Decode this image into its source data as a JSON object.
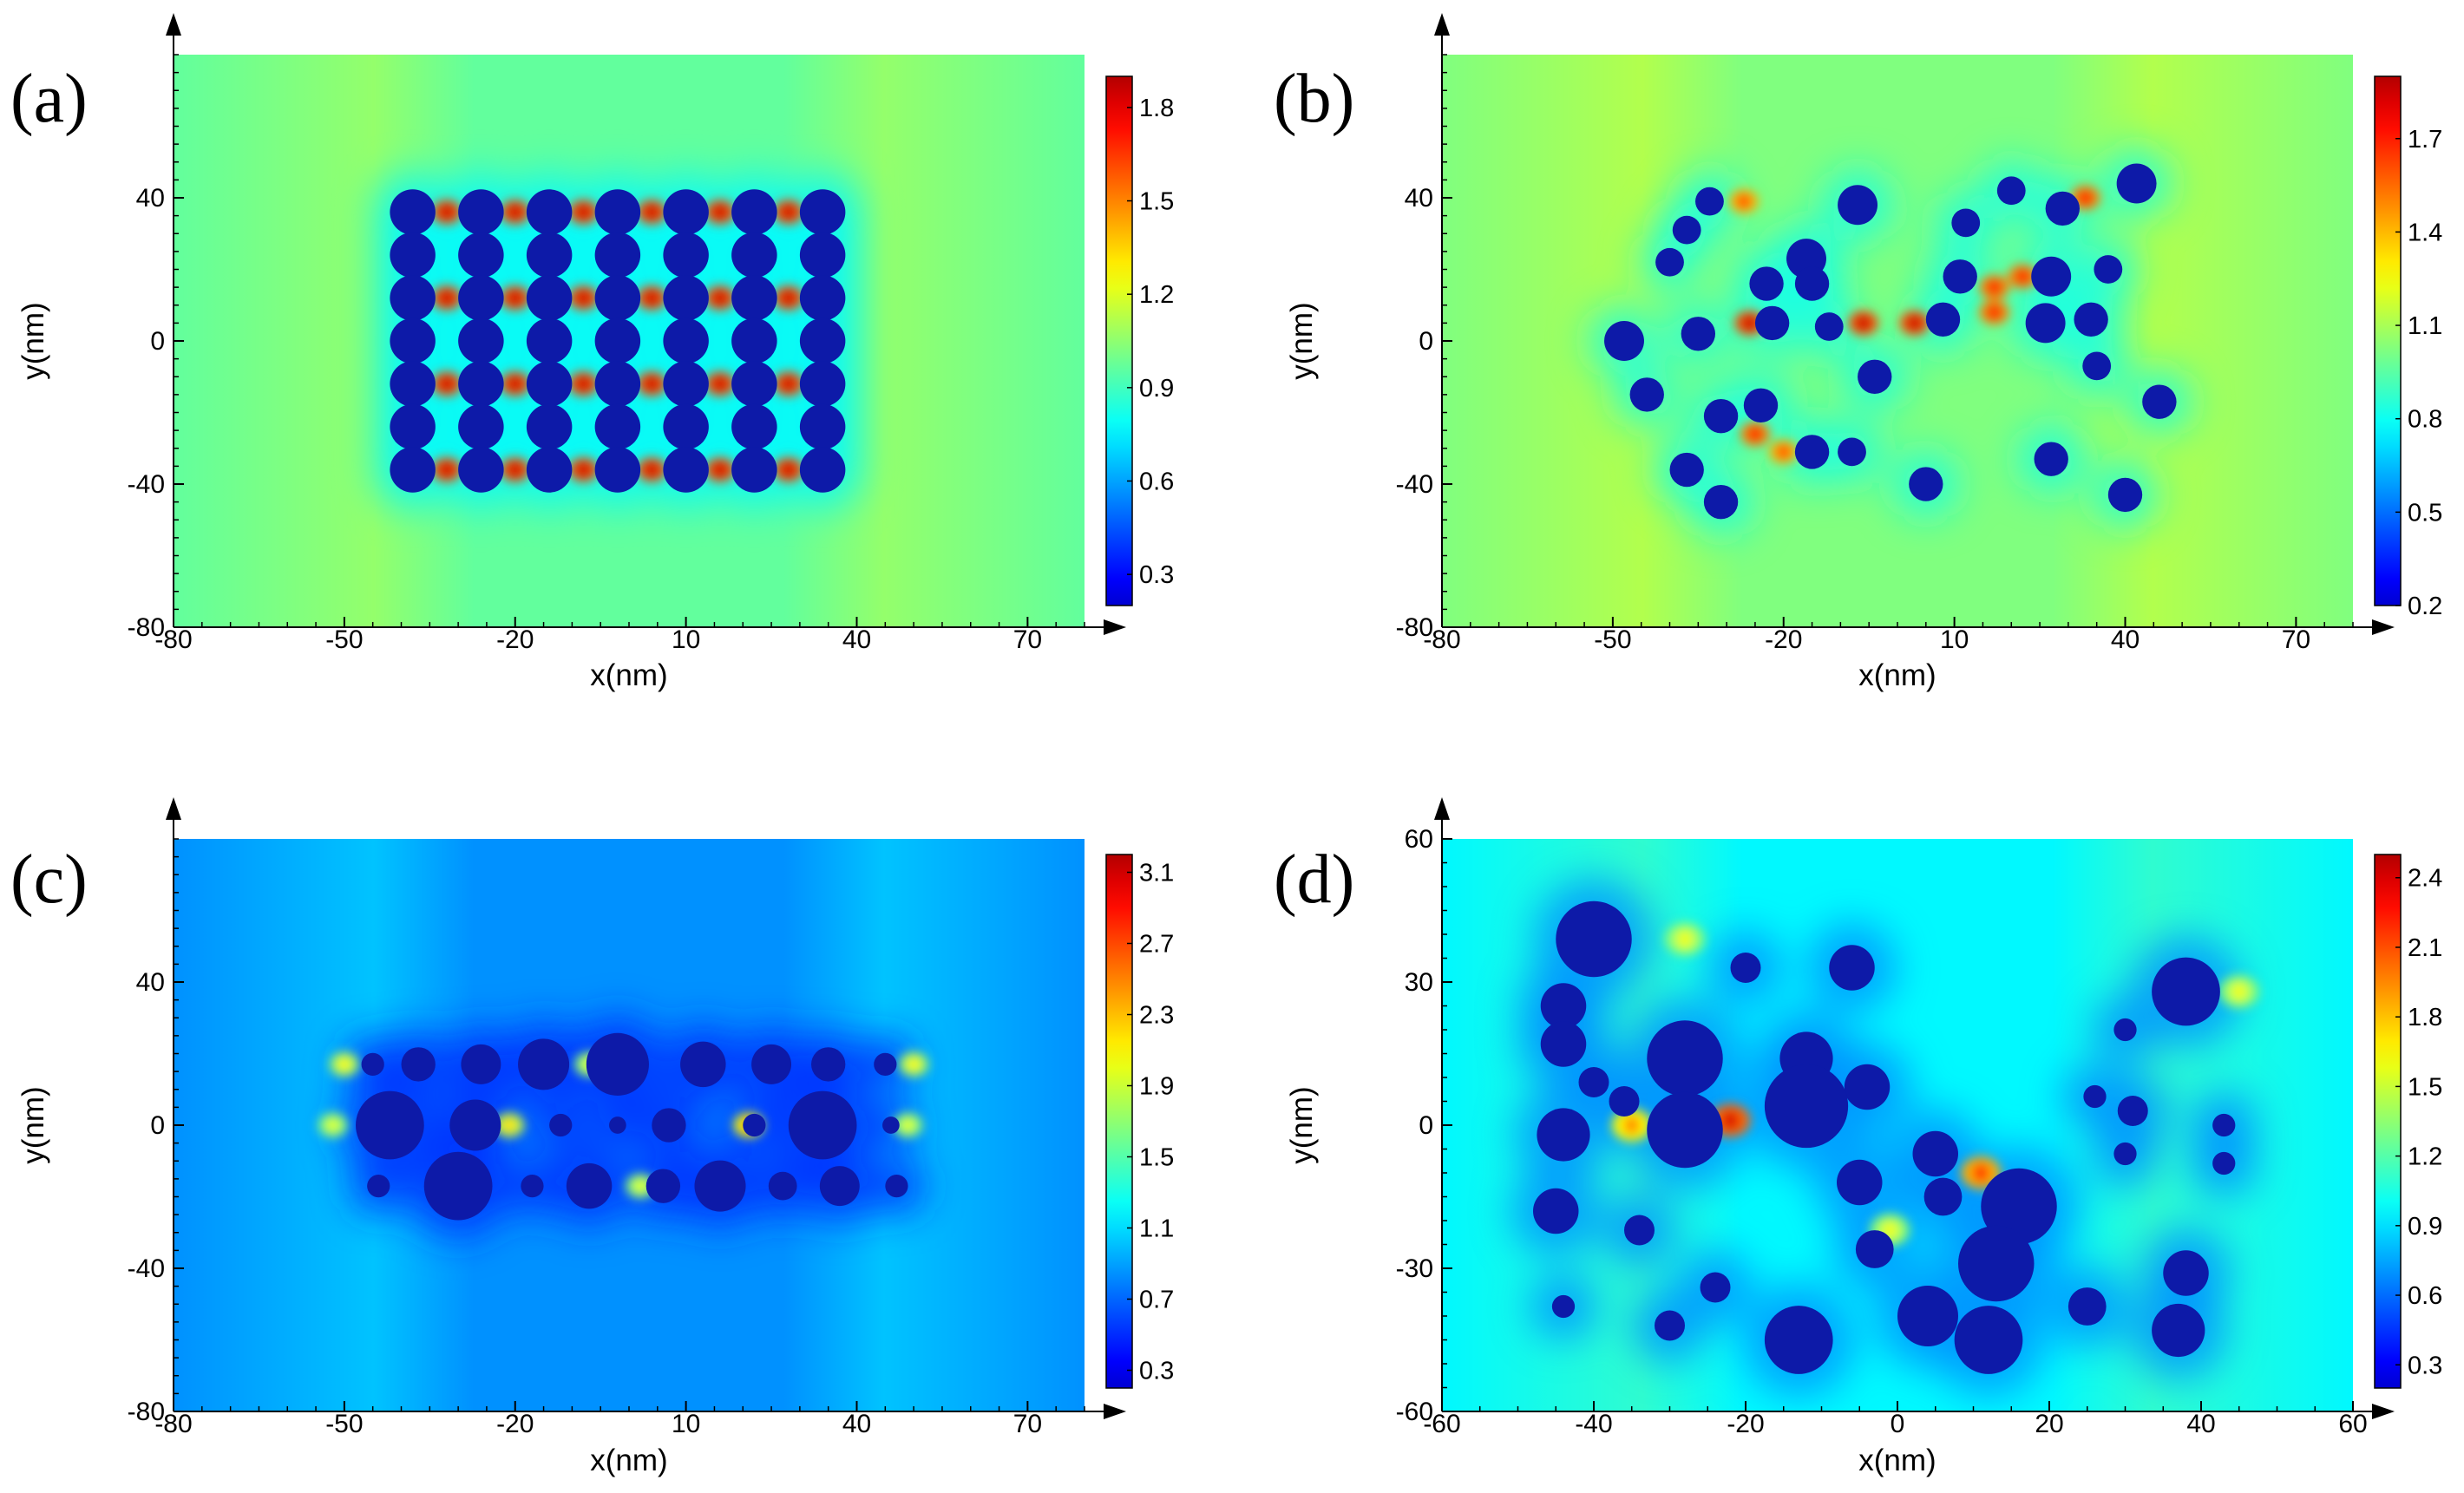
{
  "figure": {
    "kind": "field-enhancement maps of nanoparticle arrays"
  },
  "chart_data": [
    {
      "panel": "(a)",
      "type": "heatmap",
      "title": "",
      "xlabel": "x(nm)",
      "ylabel": "y(nm)",
      "xlim": [
        -80,
        80
      ],
      "ylim": [
        -80,
        80
      ],
      "xticks": [
        "-80",
        "-50",
        "-20",
        "10",
        "40",
        "70"
      ],
      "yticks": [
        "-80",
        "-40",
        "0",
        "40"
      ],
      "colorbar": {
        "min": 0.2,
        "max": 1.9,
        "ticks": [
          "0.3",
          "0.6",
          "0.9",
          "1.2",
          "1.5",
          "1.8"
        ]
      },
      "background_level": 1.0,
      "particles": [
        {
          "x": -38,
          "y": 36,
          "r": 4
        },
        {
          "x": -26,
          "y": 36,
          "r": 4
        },
        {
          "x": -14,
          "y": 36,
          "r": 4
        },
        {
          "x": -2,
          "y": 36,
          "r": 4
        },
        {
          "x": 10,
          "y": 36,
          "r": 4
        },
        {
          "x": 22,
          "y": 36,
          "r": 4
        },
        {
          "x": 34,
          "y": 36,
          "r": 4
        },
        {
          "x": -38,
          "y": 24,
          "r": 4
        },
        {
          "x": -26,
          "y": 24,
          "r": 4
        },
        {
          "x": -14,
          "y": 24,
          "r": 4
        },
        {
          "x": -2,
          "y": 24,
          "r": 4
        },
        {
          "x": 10,
          "y": 24,
          "r": 4
        },
        {
          "x": 22,
          "y": 24,
          "r": 4
        },
        {
          "x": 34,
          "y": 24,
          "r": 4
        },
        {
          "x": -38,
          "y": 12,
          "r": 4
        },
        {
          "x": -26,
          "y": 12,
          "r": 4
        },
        {
          "x": -14,
          "y": 12,
          "r": 4
        },
        {
          "x": -2,
          "y": 12,
          "r": 4
        },
        {
          "x": 10,
          "y": 12,
          "r": 4
        },
        {
          "x": 22,
          "y": 12,
          "r": 4
        },
        {
          "x": 34,
          "y": 12,
          "r": 4
        },
        {
          "x": -38,
          "y": 0,
          "r": 4
        },
        {
          "x": -26,
          "y": 0,
          "r": 4
        },
        {
          "x": -14,
          "y": 0,
          "r": 4
        },
        {
          "x": -2,
          "y": 0,
          "r": 4
        },
        {
          "x": 10,
          "y": 0,
          "r": 4
        },
        {
          "x": 22,
          "y": 0,
          "r": 4
        },
        {
          "x": 34,
          "y": 0,
          "r": 4
        },
        {
          "x": -38,
          "y": -12,
          "r": 4
        },
        {
          "x": -26,
          "y": -12,
          "r": 4
        },
        {
          "x": -14,
          "y": -12,
          "r": 4
        },
        {
          "x": -2,
          "y": -12,
          "r": 4
        },
        {
          "x": 10,
          "y": -12,
          "r": 4
        },
        {
          "x": 22,
          "y": -12,
          "r": 4
        },
        {
          "x": 34,
          "y": -12,
          "r": 4
        },
        {
          "x": -38,
          "y": -24,
          "r": 4
        },
        {
          "x": -26,
          "y": -24,
          "r": 4
        },
        {
          "x": -14,
          "y": -24,
          "r": 4
        },
        {
          "x": -2,
          "y": -24,
          "r": 4
        },
        {
          "x": 10,
          "y": -24,
          "r": 4
        },
        {
          "x": 22,
          "y": -24,
          "r": 4
        },
        {
          "x": 34,
          "y": -24,
          "r": 4
        },
        {
          "x": -38,
          "y": -36,
          "r": 4
        },
        {
          "x": -26,
          "y": -36,
          "r": 4
        },
        {
          "x": -14,
          "y": -36,
          "r": 4
        },
        {
          "x": -2,
          "y": -36,
          "r": 4
        },
        {
          "x": 10,
          "y": -36,
          "r": 4
        },
        {
          "x": 22,
          "y": -36,
          "r": 4
        },
        {
          "x": 34,
          "y": -36,
          "r": 4
        }
      ],
      "hotspots": [
        {
          "x": -32,
          "y": 36,
          "level": 1.8
        },
        {
          "x": -20,
          "y": 36,
          "level": 1.8
        },
        {
          "x": -8,
          "y": 36,
          "level": 1.8
        },
        {
          "x": 4,
          "y": 36,
          "level": 1.8
        },
        {
          "x": 16,
          "y": 36,
          "level": 1.8
        },
        {
          "x": 28,
          "y": 36,
          "level": 1.8
        },
        {
          "x": -32,
          "y": 12,
          "level": 1.8
        },
        {
          "x": -20,
          "y": 12,
          "level": 1.8
        },
        {
          "x": -8,
          "y": 12,
          "level": 1.8
        },
        {
          "x": 4,
          "y": 12,
          "level": 1.8
        },
        {
          "x": 16,
          "y": 12,
          "level": 1.8
        },
        {
          "x": 28,
          "y": 12,
          "level": 1.8
        },
        {
          "x": -32,
          "y": -12,
          "level": 1.8
        },
        {
          "x": -20,
          "y": -12,
          "level": 1.8
        },
        {
          "x": -8,
          "y": -12,
          "level": 1.8
        },
        {
          "x": 4,
          "y": -12,
          "level": 1.8
        },
        {
          "x": 16,
          "y": -12,
          "level": 1.8
        },
        {
          "x": 28,
          "y": -12,
          "level": 1.8
        },
        {
          "x": -32,
          "y": -36,
          "level": 1.8
        },
        {
          "x": -20,
          "y": -36,
          "level": 1.8
        },
        {
          "x": -8,
          "y": -36,
          "level": 1.8
        },
        {
          "x": 4,
          "y": -36,
          "level": 1.8
        },
        {
          "x": 16,
          "y": -36,
          "level": 1.8
        },
        {
          "x": 28,
          "y": -36,
          "level": 1.8
        }
      ]
    },
    {
      "panel": "(b)",
      "type": "heatmap",
      "title": "",
      "xlabel": "x(nm)",
      "ylabel": "y(nm)",
      "xlim": [
        -80,
        80
      ],
      "ylim": [
        -80,
        80
      ],
      "xticks": [
        "-80",
        "-50",
        "-20",
        "10",
        "40",
        "70"
      ],
      "yticks": [
        "-80",
        "-40",
        "0",
        "40"
      ],
      "colorbar": {
        "min": 0.2,
        "max": 1.9,
        "ticks": [
          "0.2",
          "0.5",
          "0.8",
          "1.1",
          "1.4",
          "1.7"
        ]
      },
      "background_level": 1.05,
      "particles": [
        {
          "x": -33,
          "y": 39,
          "r": 2.5
        },
        {
          "x": -7,
          "y": 38,
          "r": 3.5
        },
        {
          "x": 20,
          "y": 42,
          "r": 2.5
        },
        {
          "x": 42,
          "y": 44,
          "r": 3.5
        },
        {
          "x": 29,
          "y": 37,
          "r": 3
        },
        {
          "x": -37,
          "y": 31,
          "r": 2.5
        },
        {
          "x": -16,
          "y": 23,
          "r": 3.5
        },
        {
          "x": 12,
          "y": 33,
          "r": 2.5
        },
        {
          "x": -40,
          "y": 22,
          "r": 2.5
        },
        {
          "x": -23,
          "y": 16,
          "r": 3
        },
        {
          "x": -15,
          "y": 16,
          "r": 3
        },
        {
          "x": 11,
          "y": 18,
          "r": 3
        },
        {
          "x": 27,
          "y": 18,
          "r": 3.5
        },
        {
          "x": 37,
          "y": 20,
          "r": 2.5
        },
        {
          "x": -48,
          "y": 0,
          "r": 3.5
        },
        {
          "x": -35,
          "y": 2,
          "r": 3
        },
        {
          "x": -22,
          "y": 5,
          "r": 3
        },
        {
          "x": -12,
          "y": 4,
          "r": 2.5
        },
        {
          "x": 8,
          "y": 6,
          "r": 3
        },
        {
          "x": 26,
          "y": 5,
          "r": 3.5
        },
        {
          "x": 34,
          "y": 6,
          "r": 3
        },
        {
          "x": -44,
          "y": -15,
          "r": 3
        },
        {
          "x": -24,
          "y": -18,
          "r": 3
        },
        {
          "x": -4,
          "y": -10,
          "r": 3
        },
        {
          "x": 35,
          "y": -7,
          "r": 2.5
        },
        {
          "x": 46,
          "y": -17,
          "r": 3
        },
        {
          "x": -31,
          "y": -21,
          "r": 3
        },
        {
          "x": -37,
          "y": -36,
          "r": 3
        },
        {
          "x": -15,
          "y": -31,
          "r": 3
        },
        {
          "x": -8,
          "y": -31,
          "r": 2.5
        },
        {
          "x": 27,
          "y": -33,
          "r": 3
        },
        {
          "x": -31,
          "y": -45,
          "r": 3
        },
        {
          "x": 5,
          "y": -40,
          "r": 3
        },
        {
          "x": 40,
          "y": -43,
          "r": 3
        }
      ],
      "hotspots": [
        {
          "x": -26,
          "y": 5,
          "level": 1.8
        },
        {
          "x": -6,
          "y": 5,
          "level": 1.8
        },
        {
          "x": 3,
          "y": 5,
          "level": 1.8
        },
        {
          "x": 17,
          "y": 8,
          "level": 1.7
        },
        {
          "x": 33,
          "y": 40,
          "level": 1.7
        },
        {
          "x": 22,
          "y": 18,
          "level": 1.7
        },
        {
          "x": 17,
          "y": 15,
          "level": 1.7
        },
        {
          "x": -25,
          "y": -26,
          "level": 1.7
        },
        {
          "x": -20,
          "y": -31,
          "level": 1.6
        },
        {
          "x": -27,
          "y": 39,
          "level": 1.6
        }
      ]
    },
    {
      "panel": "(c)",
      "type": "heatmap",
      "title": "",
      "xlabel": "x(nm)",
      "ylabel": "y(nm)",
      "xlim": [
        -80,
        80
      ],
      "ylim": [
        -80,
        80
      ],
      "xticks": [
        "-80",
        "-50",
        "-20",
        "10",
        "40",
        "70"
      ],
      "yticks": [
        "-80",
        "-40",
        "0",
        "40"
      ],
      "colorbar": {
        "min": 0.2,
        "max": 3.2,
        "ticks": [
          "0.3",
          "0.7",
          "1.1",
          "1.5",
          "1.9",
          "2.3",
          "2.7",
          "3.1"
        ]
      },
      "background_level": 1.0,
      "particles": [
        {
          "x": -45,
          "y": 17,
          "r": 2
        },
        {
          "x": -37,
          "y": 17,
          "r": 3
        },
        {
          "x": -26,
          "y": 17,
          "r": 3.5
        },
        {
          "x": -15,
          "y": 17,
          "r": 4.5
        },
        {
          "x": -2,
          "y": 17,
          "r": 5.5
        },
        {
          "x": 13,
          "y": 17,
          "r": 4
        },
        {
          "x": 25,
          "y": 17,
          "r": 3.5
        },
        {
          "x": 35,
          "y": 17,
          "r": 3
        },
        {
          "x": 45,
          "y": 17,
          "r": 2
        },
        {
          "x": -42,
          "y": 0,
          "r": 6
        },
        {
          "x": -27,
          "y": 0,
          "r": 4.5
        },
        {
          "x": -12,
          "y": 0,
          "r": 2
        },
        {
          "x": -2,
          "y": 0,
          "r": 1.5
        },
        {
          "x": 7,
          "y": 0,
          "r": 3
        },
        {
          "x": 22,
          "y": 0,
          "r": 2
        },
        {
          "x": 34,
          "y": 0,
          "r": 6
        },
        {
          "x": 46,
          "y": 0,
          "r": 1.5
        },
        {
          "x": -44,
          "y": -17,
          "r": 2
        },
        {
          "x": -30,
          "y": -17,
          "r": 6
        },
        {
          "x": -17,
          "y": -17,
          "r": 2
        },
        {
          "x": -7,
          "y": -17,
          "r": 4
        },
        {
          "x": 6,
          "y": -17,
          "r": 3
        },
        {
          "x": 16,
          "y": -17,
          "r": 4.5
        },
        {
          "x": 27,
          "y": -17,
          "r": 2.5
        },
        {
          "x": 37,
          "y": -17,
          "r": 3.5
        },
        {
          "x": 47,
          "y": -17,
          "r": 2
        }
      ],
      "hotspots": [
        {
          "x": -21,
          "y": 0,
          "level": 2.2
        },
        {
          "x": 21,
          "y": 0,
          "level": 2.4
        },
        {
          "x": -7,
          "y": 17,
          "level": 2.0
        },
        {
          "x": 2,
          "y": -17,
          "level": 2.0
        },
        {
          "x": -50,
          "y": 17,
          "level": 2.1
        },
        {
          "x": 50,
          "y": 17,
          "level": 2.1
        },
        {
          "x": -52,
          "y": 0,
          "level": 2.0
        },
        {
          "x": 49,
          "y": 0,
          "level": 2.0
        }
      ]
    },
    {
      "panel": "(d)",
      "type": "heatmap",
      "title": "",
      "xlabel": "x(nm)",
      "ylabel": "y(nm)",
      "xlim": [
        -60,
        60
      ],
      "ylim": [
        -60,
        60
      ],
      "xticks": [
        "-60",
        "-40",
        "-20",
        "0",
        "20",
        "40",
        "60"
      ],
      "yticks": [
        "-60",
        "-30",
        "0",
        "30",
        "60"
      ],
      "colorbar": {
        "min": 0.2,
        "max": 2.5,
        "ticks": [
          "0.3",
          "0.6",
          "0.9",
          "1.2",
          "1.5",
          "1.8",
          "2.1",
          "2.4"
        ]
      },
      "background_level": 1.05,
      "particles": [
        {
          "x": -40,
          "y": 39,
          "r": 5
        },
        {
          "x": -20,
          "y": 33,
          "r": 2
        },
        {
          "x": -6,
          "y": 33,
          "r": 3
        },
        {
          "x": 38,
          "y": 28,
          "r": 4.5
        },
        {
          "x": -44,
          "y": 25,
          "r": 3
        },
        {
          "x": -44,
          "y": 17,
          "r": 3
        },
        {
          "x": -28,
          "y": 14,
          "r": 5
        },
        {
          "x": -12,
          "y": 14,
          "r": 3.5
        },
        {
          "x": 30,
          "y": 20,
          "r": 1.5
        },
        {
          "x": -40,
          "y": 9,
          "r": 2
        },
        {
          "x": -36,
          "y": 5,
          "r": 2
        },
        {
          "x": -4,
          "y": 8,
          "r": 3
        },
        {
          "x": 26,
          "y": 6,
          "r": 1.5
        },
        {
          "x": -44,
          "y": -2,
          "r": 3.5
        },
        {
          "x": -28,
          "y": -1,
          "r": 5
        },
        {
          "x": -12,
          "y": 4,
          "r": 5.5
        },
        {
          "x": 31,
          "y": 3,
          "r": 2
        },
        {
          "x": 43,
          "y": 0,
          "r": 1.5
        },
        {
          "x": 5,
          "y": -6,
          "r": 3
        },
        {
          "x": 30,
          "y": -6,
          "r": 1.5
        },
        {
          "x": 43,
          "y": -8,
          "r": 1.5
        },
        {
          "x": -5,
          "y": -12,
          "r": 3
        },
        {
          "x": 6,
          "y": -15,
          "r": 2.5
        },
        {
          "x": 16,
          "y": -17,
          "r": 5
        },
        {
          "x": -45,
          "y": -18,
          "r": 3
        },
        {
          "x": -34,
          "y": -22,
          "r": 2
        },
        {
          "x": -3,
          "y": -26,
          "r": 2.5
        },
        {
          "x": 13,
          "y": -29,
          "r": 5
        },
        {
          "x": -24,
          "y": -34,
          "r": 2
        },
        {
          "x": 4,
          "y": -40,
          "r": 4
        },
        {
          "x": 38,
          "y": -31,
          "r": 3
        },
        {
          "x": 25,
          "y": -38,
          "r": 2.5
        },
        {
          "x": -44,
          "y": -38,
          "r": 1.5
        },
        {
          "x": -30,
          "y": -42,
          "r": 2
        },
        {
          "x": -13,
          "y": -45,
          "r": 4.5
        },
        {
          "x": 12,
          "y": -45,
          "r": 4.5
        },
        {
          "x": 37,
          "y": -43,
          "r": 3.5
        }
      ],
      "hotspots": [
        {
          "x": -22,
          "y": 1,
          "level": 2.3
        },
        {
          "x": 11,
          "y": -10,
          "level": 2.1
        },
        {
          "x": -35,
          "y": 0,
          "level": 1.9
        },
        {
          "x": -28,
          "y": 39,
          "level": 1.6
        },
        {
          "x": 45,
          "y": 28,
          "level": 1.6
        },
        {
          "x": -1,
          "y": -22,
          "level": 1.6
        }
      ]
    }
  ]
}
